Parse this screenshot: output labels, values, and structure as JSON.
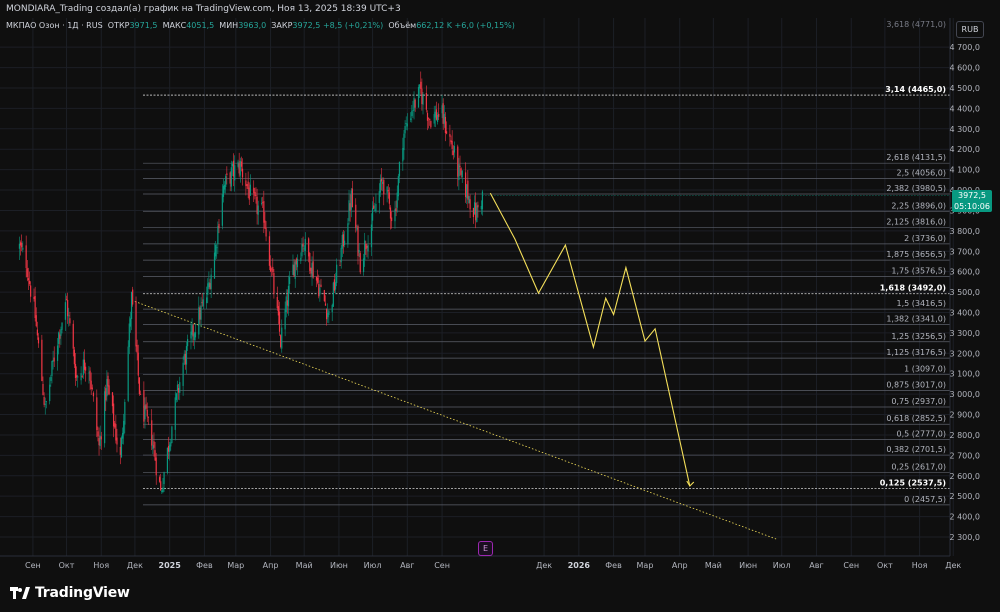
{
  "header": {
    "attribution": "MONDIARA_Trading создал(а) график на TradingView.com, Ноя 13, 2025 18:39 UTC+3"
  },
  "legend": {
    "symbol": "МКПАО Озон · 1Д · RUS",
    "open_label": "ОТКР",
    "open_value": "3971,5",
    "high_label": "МАКС",
    "high_value": "4051,5",
    "low_label": "МИН",
    "low_value": "3963,0",
    "close_label": "ЗАКР",
    "close_value": "3972,5",
    "change": "+8,5 (+0,21%)",
    "volume_label": "Объём",
    "volume_value": "662,12 K",
    "volume_change": "+6,0 (+0,15%)"
  },
  "currency": "RUB",
  "price_tag": {
    "price": "3972,5",
    "countdown": "05:10:06"
  },
  "earnings_badge": "E",
  "brand": {
    "name": "TradingView"
  },
  "colors": {
    "up": "#089981",
    "down": "#f23645",
    "projection": "#f5e05a",
    "fib": "#787b86",
    "background": "#0f0f0f"
  },
  "chart_data": {
    "type": "candlestick",
    "y_scale": "linear",
    "y_ticks": [
      2300,
      2400,
      2500,
      2600,
      2700,
      2800,
      2900,
      3000,
      3100,
      3200,
      3300,
      3400,
      3500,
      3600,
      3700,
      3800,
      3900,
      4000,
      4100,
      4200,
      4300,
      4400,
      4500,
      4600,
      4700
    ],
    "y_tick_labels": [
      "2 300,0",
      "2 400,0",
      "2 500,0",
      "2 600,0",
      "2 700,0",
      "2 800,0",
      "2 900,0",
      "3 000,0",
      "3 100,0",
      "3 200,0",
      "3 300,0",
      "3 400,0",
      "3 500,0",
      "3 600,0",
      "3 700,0",
      "3 800,0",
      "3 900,0",
      "4 000,0",
      "4 100,0",
      "4 200,0",
      "4 300,0",
      "4 400,0",
      "4 500,0",
      "4 600,0",
      "4 700,0"
    ],
    "top_label": "3,618 (4771,0)",
    "x_labels": [
      "Сен",
      "Окт",
      "Ноя",
      "Дек",
      "2025",
      "Фев",
      "Мар",
      "Апр",
      "Май",
      "Июн",
      "Июл",
      "Авг",
      "Сен",
      "Дек",
      "2026",
      "Фев",
      "Мар",
      "Апр",
      "Май",
      "Июн",
      "Июл",
      "Авг",
      "Сен",
      "Окт",
      "Ноя",
      "Дек"
    ],
    "x_label_bold": [
      "2025",
      "2026"
    ],
    "fib_levels": [
      {
        "ratio": "3,14",
        "price": 4465.0,
        "label": "3,14 (4465,0)",
        "bold": true
      },
      {
        "ratio": "2,618",
        "price": 4131.5,
        "label": "2,618 (4131,5)"
      },
      {
        "ratio": "2,5",
        "price": 4056.0,
        "label": "2,5 (4056,0)"
      },
      {
        "ratio": "2,382",
        "price": 3980.5,
        "label": "2,382 (3980,5)"
      },
      {
        "ratio": "2,25",
        "price": 3896.0,
        "label": "2,25 (3896,0)"
      },
      {
        "ratio": "2,125",
        "price": 3816.0,
        "label": "2,125 (3816,0)"
      },
      {
        "ratio": "2",
        "price": 3736.0,
        "label": "2 (3736,0)"
      },
      {
        "ratio": "1,875",
        "price": 3656.5,
        "label": "1,875 (3656,5)"
      },
      {
        "ratio": "1,75",
        "price": 3576.5,
        "label": "1,75 (3576,5)"
      },
      {
        "ratio": "1,618",
        "price": 3492.0,
        "label": "1,618 (3492,0)",
        "bold": true
      },
      {
        "ratio": "1,5",
        "price": 3416.5,
        "label": "1,5 (3416,5)"
      },
      {
        "ratio": "1,382",
        "price": 3341.0,
        "label": "1,382 (3341,0)"
      },
      {
        "ratio": "1,25",
        "price": 3256.5,
        "label": "1,25 (3256,5)"
      },
      {
        "ratio": "1,125",
        "price": 3176.5,
        "label": "1,125 (3176,5)"
      },
      {
        "ratio": "1",
        "price": 3097.0,
        "label": "1 (3097,0)"
      },
      {
        "ratio": "0,875",
        "price": 3017.0,
        "label": "0,875 (3017,0)"
      },
      {
        "ratio": "0,75",
        "price": 2937.0,
        "label": "0,75 (2937,0)"
      },
      {
        "ratio": "0,618",
        "price": 2852.5,
        "label": "0,618 (2852,5)"
      },
      {
        "ratio": "0,5",
        "price": 2777.0,
        "label": "0,5 (2777,0)"
      },
      {
        "ratio": "0,382",
        "price": 2701.5,
        "label": "0,382 (2701,5)"
      },
      {
        "ratio": "0,25",
        "price": 2617.0,
        "label": "0,25 (2617,0)"
      },
      {
        "ratio": "0,125",
        "price": 2537.5,
        "label": "0,125 (2537,5)",
        "bold": true
      },
      {
        "ratio": "0",
        "price": 2457.5,
        "label": "0 (2457,5)"
      }
    ],
    "price_path": [
      [
        "2024-08-20",
        3720
      ],
      [
        "2024-08-26",
        3650
      ],
      [
        "2024-09-03",
        3380
      ],
      [
        "2024-09-12",
        2920
      ],
      [
        "2024-09-22",
        3250
      ],
      [
        "2024-10-01",
        3450
      ],
      [
        "2024-10-10",
        3080
      ],
      [
        "2024-10-20",
        3180
      ],
      [
        "2024-10-30",
        2740
      ],
      [
        "2024-11-06",
        3050
      ],
      [
        "2024-11-18",
        2680
      ],
      [
        "2024-11-28",
        3470
      ],
      [
        "2024-12-06",
        2960
      ],
      [
        "2024-12-16",
        2790
      ],
      [
        "2024-12-24",
        2520
      ],
      [
        "2025-01-03",
        2850
      ],
      [
        "2025-01-13",
        3150
      ],
      [
        "2025-01-24",
        3340
      ],
      [
        "2025-02-03",
        3480
      ],
      [
        "2025-02-11",
        3720
      ],
      [
        "2025-02-17",
        4000
      ],
      [
        "2025-02-25",
        4080
      ],
      [
        "2025-03-05",
        4120
      ],
      [
        "2025-03-16",
        3940
      ],
      [
        "2025-03-26",
        3880
      ],
      [
        "2025-04-03",
        3550
      ],
      [
        "2025-04-10",
        3260
      ],
      [
        "2025-04-20",
        3600
      ],
      [
        "2025-04-30",
        3750
      ],
      [
        "2025-05-12",
        3560
      ],
      [
        "2025-05-23",
        3390
      ],
      [
        "2025-06-01",
        3640
      ],
      [
        "2025-06-12",
        3960
      ],
      [
        "2025-06-20",
        3650
      ],
      [
        "2025-06-30",
        3840
      ],
      [
        "2025-07-10",
        4050
      ],
      [
        "2025-07-20",
        3840
      ],
      [
        "2025-07-28",
        4260
      ],
      [
        "2025-08-05",
        4400
      ],
      [
        "2025-08-13",
        4480
      ],
      [
        "2025-08-21",
        4350
      ],
      [
        "2025-08-31",
        4380
      ],
      [
        "2025-09-08",
        4250
      ],
      [
        "2025-09-16",
        4080
      ],
      [
        "2025-09-24",
        3980
      ],
      [
        "2025-10-01",
        3880
      ],
      [
        "2025-10-07",
        3972.5
      ]
    ],
    "projection": [
      [
        "2025-10-14",
        3985
      ],
      [
        "2025-11-05",
        3760
      ],
      [
        "2025-11-26",
        3495
      ],
      [
        "2025-12-20",
        3730
      ],
      [
        "2026-01-14",
        3230
      ],
      [
        "2026-01-25",
        3470
      ],
      [
        "2026-02-01",
        3390
      ],
      [
        "2026-02-12",
        3620
      ],
      [
        "2026-03-01",
        3260
      ],
      [
        "2026-03-10",
        3320
      ],
      [
        "2026-04-10",
        2550
      ]
    ],
    "trendline": [
      [
        "2024-11-28",
        3460
      ],
      [
        "2026-06-26",
        2290
      ]
    ],
    "last_price": 3972.5
  }
}
